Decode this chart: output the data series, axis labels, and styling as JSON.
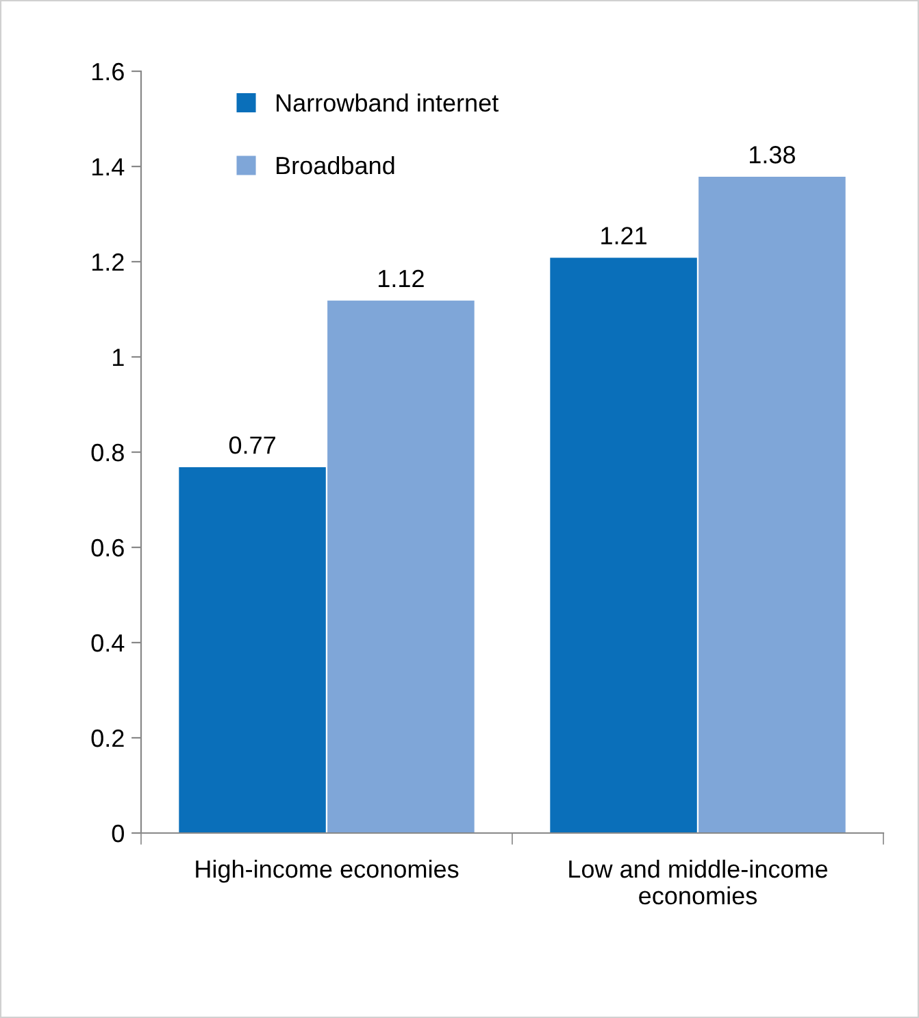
{
  "chart_data": {
    "type": "bar",
    "categories": [
      "High-income economies",
      "Low and middle-income\neconomies"
    ],
    "series": [
      {
        "name": "Narrowband internet",
        "color": "#0a6fba",
        "values": [
          0.77,
          1.21
        ]
      },
      {
        "name": "Broadband",
        "color": "#7fa6d8",
        "values": [
          1.12,
          1.38
        ]
      }
    ],
    "ylim": [
      0,
      1.6
    ],
    "yticks": [
      0,
      0.2,
      0.4,
      0.6,
      0.8,
      1,
      1.2,
      1.4,
      1.6
    ],
    "data_labels": true,
    "grid": false,
    "legend": "top left"
  }
}
